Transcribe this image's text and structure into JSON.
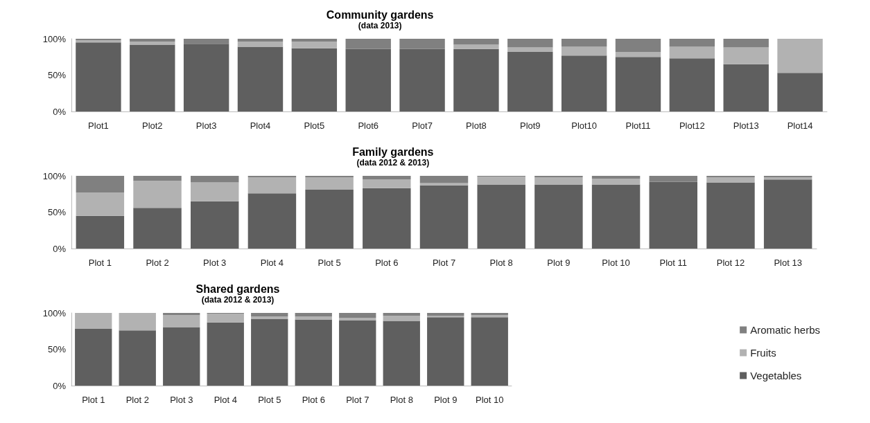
{
  "chart_data": [
    {
      "type": "bar",
      "title": "Community gardens",
      "subtitle": "(data 2013)",
      "stacked": true,
      "legend": false,
      "grid": false,
      "categories": [
        "Plot1",
        "Plot2",
        "Plot3",
        "Plot4",
        "Plot5",
        "Plot6",
        "Plot7",
        "Plot8",
        "Plot9",
        "Plot10",
        "Plot11",
        "Plot12",
        "Plot13",
        "Plot14"
      ],
      "ylim": [
        0,
        100
      ],
      "yticks": [
        {
          "value": 0,
          "label": "0%"
        },
        {
          "value": 50,
          "label": "50%"
        },
        {
          "value": 100,
          "label": "100%"
        }
      ],
      "series": [
        {
          "color": "#5f5f5f",
          "values": [
            95,
            92,
            93,
            89,
            87,
            86,
            86,
            86,
            82,
            77,
            75,
            73,
            65,
            53
          ]
        },
        {
          "color": "#b2b2b2",
          "values": [
            3,
            4,
            0,
            7,
            9,
            0,
            0,
            6,
            6,
            12,
            7,
            16,
            23,
            47
          ]
        },
        {
          "color": "#808080",
          "values": [
            2,
            4,
            7,
            4,
            4,
            14,
            14,
            8,
            12,
            11,
            18,
            11,
            12,
            0
          ]
        }
      ]
    },
    {
      "type": "bar",
      "title": "Family gardens",
      "subtitle": "(data 2012 & 2013)",
      "stacked": true,
      "legend": false,
      "grid": false,
      "categories": [
        "Plot 1",
        "Plot 2",
        "Plot 3",
        "Plot 4",
        "Plot 5",
        "Plot 6",
        "Plot 7",
        "Plot 8",
        "Plot 9",
        "Plot 10",
        "Plot 11",
        "Plot 12",
        "Plot 13"
      ],
      "ylim": [
        0,
        100
      ],
      "yticks": [
        {
          "value": 0,
          "label": "0%"
        },
        {
          "value": 50,
          "label": "50%"
        },
        {
          "value": 100,
          "label": "100%"
        }
      ],
      "series": [
        {
          "color": "#5f5f5f",
          "values": [
            45,
            56,
            65,
            76,
            81,
            83,
            87,
            88,
            88,
            88,
            92,
            91,
            95
          ]
        },
        {
          "color": "#b2b2b2",
          "values": [
            32,
            37,
            26,
            22,
            17,
            12,
            3,
            11,
            10,
            8,
            0,
            7,
            3
          ]
        },
        {
          "color": "#808080",
          "values": [
            23,
            7,
            9,
            2,
            2,
            5,
            10,
            1,
            2,
            4,
            8,
            2,
            2
          ]
        }
      ]
    },
    {
      "type": "bar",
      "title": "Shared gardens",
      "subtitle": "(data 2012 & 2013)",
      "stacked": true,
      "legend": "right",
      "grid": false,
      "categories": [
        "Plot 1",
        "Plot 2",
        "Plot 3",
        "Plot 4",
        "Plot 5",
        "Plot 6",
        "Plot 7",
        "Plot 8",
        "Plot 9",
        "Plot 10"
      ],
      "ylim": [
        0,
        100
      ],
      "yticks": [
        {
          "value": 0,
          "label": "0%"
        },
        {
          "value": 50,
          "label": "50%"
        },
        {
          "value": 100,
          "label": "100%"
        }
      ],
      "series": [
        {
          "name": "Vegetables",
          "color": "#5f5f5f",
          "values": [
            78,
            76,
            80,
            87,
            92,
            91,
            90,
            89,
            94,
            94
          ]
        },
        {
          "name": "Fruits",
          "color": "#b2b2b2",
          "values": [
            22,
            24,
            17,
            12,
            3,
            4,
            3,
            7,
            2,
            3
          ]
        },
        {
          "name": "Aromatic herbs",
          "color": "#808080",
          "values": [
            0,
            0,
            3,
            1,
            5,
            5,
            7,
            4,
            4,
            3
          ]
        }
      ]
    }
  ]
}
